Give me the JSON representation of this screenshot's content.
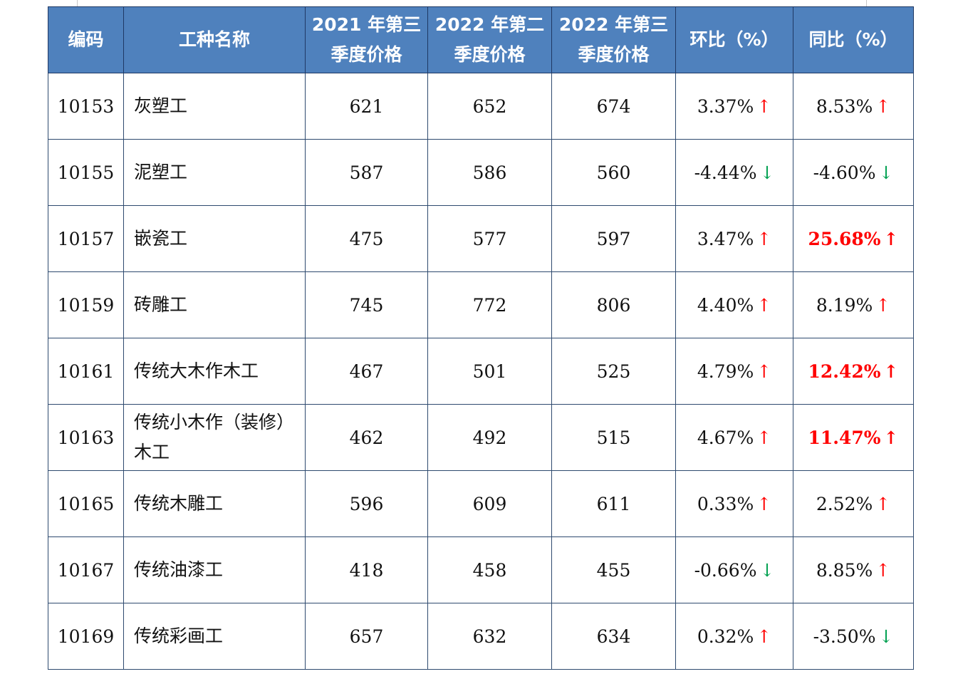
{
  "columns": [
    "编码",
    "工种名称",
    "2021 年第三季度价格",
    "2022 年第二季度价格",
    "2022 年第三季度价格",
    "环比（%）",
    "同比（%）"
  ],
  "colors": {
    "header_bg": "#4f81bd",
    "up_arrow": "#ff0000",
    "down_arrow": "#00a050",
    "highlight_text": "#ff0000"
  },
  "rows": [
    {
      "code": "10153",
      "name": "灰塑工",
      "q3_2021": "621",
      "q2_2022": "652",
      "q3_2022": "674",
      "mom": "3.37%",
      "mom_dir": "up",
      "yoy": "8.53%",
      "yoy_dir": "up",
      "yoy_highlight": false
    },
    {
      "code": "10155",
      "name": "泥塑工",
      "q3_2021": "587",
      "q2_2022": "586",
      "q3_2022": "560",
      "mom": "-4.44%",
      "mom_dir": "down",
      "yoy": "-4.60%",
      "yoy_dir": "down",
      "yoy_highlight": false
    },
    {
      "code": "10157",
      "name": "嵌瓷工",
      "q3_2021": "475",
      "q2_2022": "577",
      "q3_2022": "597",
      "mom": "3.47%",
      "mom_dir": "up",
      "yoy": "25.68%",
      "yoy_dir": "up",
      "yoy_highlight": true
    },
    {
      "code": "10159",
      "name": "砖雕工",
      "q3_2021": "745",
      "q2_2022": "772",
      "q3_2022": "806",
      "mom": "4.40%",
      "mom_dir": "up",
      "yoy": "8.19%",
      "yoy_dir": "up",
      "yoy_highlight": false
    },
    {
      "code": "10161",
      "name": "传统大木作木工",
      "q3_2021": "467",
      "q2_2022": "501",
      "q3_2022": "525",
      "mom": "4.79%",
      "mom_dir": "up",
      "yoy": "12.42%",
      "yoy_dir": "up",
      "yoy_highlight": true
    },
    {
      "code": "10163",
      "name": "传统小木作（装修）木工",
      "q3_2021": "462",
      "q2_2022": "492",
      "q3_2022": "515",
      "mom": "4.67%",
      "mom_dir": "up",
      "yoy": "11.47%",
      "yoy_dir": "up",
      "yoy_highlight": true
    },
    {
      "code": "10165",
      "name": "传统木雕工",
      "q3_2021": "596",
      "q2_2022": "609",
      "q3_2022": "611",
      "mom": "0.33%",
      "mom_dir": "up",
      "yoy": "2.52%",
      "yoy_dir": "up",
      "yoy_highlight": false
    },
    {
      "code": "10167",
      "name": "传统油漆工",
      "q3_2021": "418",
      "q2_2022": "458",
      "q3_2022": "455",
      "mom": "-0.66%",
      "mom_dir": "down",
      "yoy": "8.85%",
      "yoy_dir": "up",
      "yoy_highlight": false
    },
    {
      "code": "10169",
      "name": "传统彩画工",
      "q3_2021": "657",
      "q2_2022": "632",
      "q3_2022": "634",
      "mom": "0.32%",
      "mom_dir": "up",
      "yoy": "-3.50%",
      "yoy_dir": "down",
      "yoy_highlight": false
    }
  ]
}
